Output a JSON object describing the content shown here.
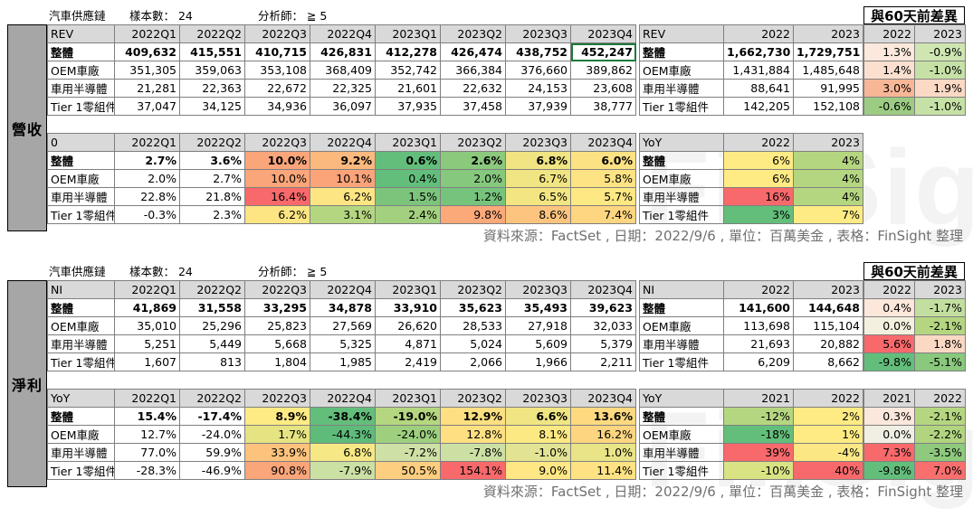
{
  "colors": {
    "red": "#f8696b",
    "orange": "#fba57a",
    "yellow": "#ffeb84",
    "lightgreen": "#b5d680",
    "green": "#63be7b",
    "header_gray": "#d9d9d9",
    "side_gray": "#a6a6a6"
  },
  "watermark": "FinSight",
  "source": "資料來源：FactSet , 日期：2022/9/6 , 單位：百萬美金 , 表格：FinSight 整理",
  "sections": [
    {
      "side_label": "營收",
      "meta": {
        "industry": "汽車供應鏈",
        "sample": "樣本數： 24",
        "analyst": "分析師： ≧ 5"
      },
      "diff_header": "與60天前差異",
      "top_left": {
        "header": [
          "REV",
          "2022Q1",
          "2022Q2",
          "2022Q3",
          "2022Q4",
          "2023Q1",
          "2023Q2",
          "2023Q3",
          "2023Q4"
        ],
        "rows": [
          {
            "label": "整體",
            "values": [
              "409,632",
              "415,551",
              "410,715",
              "426,831",
              "412,278",
              "426,474",
              "438,752",
              "452,247"
            ]
          },
          {
            "label": "OEM車廠",
            "values": [
              "351,305",
              "359,063",
              "353,108",
              "368,409",
              "352,742",
              "366,384",
              "376,660",
              "389,862"
            ]
          },
          {
            "label": "車用半導體",
            "values": [
              "21,281",
              "22,363",
              "22,672",
              "22,325",
              "21,601",
              "22,632",
              "24,153",
              "23,608"
            ]
          },
          {
            "label": "Tier 1零組件",
            "values": [
              "37,047",
              "34,125",
              "34,936",
              "36,097",
              "37,935",
              "37,458",
              "37,939",
              "38,777"
            ]
          }
        ]
      },
      "top_mid": {
        "header": [
          "REV",
          "2022",
          "2023"
        ],
        "rows": [
          {
            "label": "整體",
            "values": [
              "1,662,730",
              "1,729,751"
            ]
          },
          {
            "label": "OEM車廠",
            "values": [
              "1,431,884",
              "1,485,648"
            ]
          },
          {
            "label": "車用半導體",
            "values": [
              "88,641",
              "91,995"
            ]
          },
          {
            "label": "Tier 1零組件",
            "values": [
              "142,205",
              "152,108"
            ]
          }
        ]
      },
      "top_right": {
        "header": [
          "2022",
          "2023"
        ],
        "rows": [
          {
            "values": [
              "1.3%",
              "-0.9%"
            ],
            "colors": [
              "#fce8dc",
              "#cfe6b2"
            ]
          },
          {
            "values": [
              "1.4%",
              "-1.0%"
            ],
            "colors": [
              "#fbe0cf",
              "#c6e1a6"
            ]
          },
          {
            "values": [
              "3.0%",
              "1.9%"
            ],
            "colors": [
              "#f7b696",
              "#fbd9c5"
            ]
          },
          {
            "values": [
              "-0.6%",
              "-1.0%"
            ],
            "colors": [
              "#9ccc83",
              "#c6e1a6"
            ]
          }
        ]
      },
      "bot_left": {
        "header": [
          "0",
          "2022Q1",
          "2022Q2",
          "2022Q3",
          "2022Q4",
          "2023Q1",
          "2023Q2",
          "2023Q3",
          "2023Q4"
        ],
        "rows": [
          {
            "label": "整體",
            "values": [
              "2.7%",
              "3.6%",
              "10.0%",
              "9.2%",
              "0.6%",
              "2.6%",
              "6.8%",
              "6.0%"
            ],
            "colors": [
              "#fff",
              "#fff",
              "#fba57a",
              "#fcb97e",
              "#63be7b",
              "#8bc97d",
              "#f1e482",
              "#fde283"
            ]
          },
          {
            "label": "OEM車廠",
            "values": [
              "2.0%",
              "2.7%",
              "10.0%",
              "10.1%",
              "0.4%",
              "2.0%",
              "6.7%",
              "5.8%"
            ],
            "colors": [
              "#fff",
              "#fff",
              "#fba57a",
              "#fba379",
              "#63be7b",
              "#86c87d",
              "#f1e482",
              "#fde383"
            ]
          },
          {
            "label": "車用半導體",
            "values": [
              "22.8%",
              "21.8%",
              "16.4%",
              "6.2%",
              "1.5%",
              "1.2%",
              "6.5%",
              "5.7%"
            ],
            "colors": [
              "#fff",
              "#fff",
              "#f8696b",
              "#fee583",
              "#7cc47c",
              "#76c37c",
              "#f4e583",
              "#fde883"
            ]
          },
          {
            "label": "Tier 1零組件",
            "values": [
              "-0.3%",
              "2.3%",
              "6.2%",
              "3.1%",
              "2.4%",
              "9.8%",
              "8.6%",
              "7.4%"
            ],
            "colors": [
              "#fff",
              "#fff",
              "#fee583",
              "#b5d680",
              "#a2d07f",
              "#fba979",
              "#fdc47f",
              "#fed580"
            ]
          }
        ]
      },
      "bot_mid": {
        "header": [
          "YoY",
          "2022",
          "2023"
        ],
        "rows": [
          {
            "label": "整體",
            "values": [
              "6%",
              "4%"
            ],
            "colors": [
              "#ffeb84",
              "#b5d680"
            ]
          },
          {
            "label": "OEM車廠",
            "values": [
              "6%",
              "4%"
            ],
            "colors": [
              "#ffeb84",
              "#b5d680"
            ]
          },
          {
            "label": "車用半導體",
            "values": [
              "16%",
              "4%"
            ],
            "colors": [
              "#f8696b",
              "#b5d680"
            ]
          },
          {
            "label": "Tier 1零組件",
            "values": [
              "3%",
              "7%"
            ],
            "colors": [
              "#63be7b",
              "#ffeb84"
            ]
          }
        ]
      }
    },
    {
      "side_label": "淨利",
      "meta": {
        "industry": "汽車供應鏈",
        "sample": "樣本數： 24",
        "analyst": "分析師： ≧ 5"
      },
      "diff_header": "與60天前差異",
      "top_left": {
        "header": [
          "NI",
          "2022Q1",
          "2022Q2",
          "2022Q3",
          "2022Q4",
          "2023Q1",
          "2023Q2",
          "2023Q3",
          "2023Q4"
        ],
        "rows": [
          {
            "label": "整體",
            "values": [
              "41,869",
              "31,558",
              "33,295",
              "34,878",
              "33,910",
              "35,623",
              "35,493",
              "39,623"
            ]
          },
          {
            "label": "OEM車廠",
            "values": [
              "35,010",
              "25,296",
              "25,823",
              "27,569",
              "26,620",
              "28,533",
              "27,918",
              "32,033"
            ]
          },
          {
            "label": "車用半導體",
            "values": [
              "5,251",
              "5,449",
              "5,668",
              "5,325",
              "4,871",
              "5,024",
              "5,609",
              "5,379"
            ]
          },
          {
            "label": "Tier 1零組件",
            "values": [
              "1,607",
              "813",
              "1,804",
              "1,985",
              "2,419",
              "2,066",
              "1,966",
              "2,211"
            ]
          }
        ]
      },
      "top_mid": {
        "header": [
          "NI",
          "2022",
          "2023"
        ],
        "rows": [
          {
            "label": "整體",
            "values": [
              "141,600",
              "144,648"
            ]
          },
          {
            "label": "OEM車廠",
            "values": [
              "113,698",
              "115,104"
            ]
          },
          {
            "label": "車用半導體",
            "values": [
              "21,693",
              "20,882"
            ]
          },
          {
            "label": "Tier 1零組件",
            "values": [
              "6,209",
              "8,662"
            ]
          }
        ]
      },
      "top_right": {
        "header": [
          "2022",
          "2023"
        ],
        "rows": [
          {
            "values": [
              "0.4%",
              "-1.7%"
            ],
            "colors": [
              "#fde7da",
              "#c3df9f"
            ]
          },
          {
            "values": [
              "0.0%",
              "-2.1%"
            ],
            "colors": [
              "#f4f0df",
              "#b5d680"
            ]
          },
          {
            "values": [
              "5.6%",
              "1.8%"
            ],
            "colors": [
              "#f8696b",
              "#fbd8c3"
            ]
          },
          {
            "values": [
              "-9.8%",
              "-5.1%"
            ],
            "colors": [
              "#63be7b",
              "#89c87d"
            ]
          }
        ]
      },
      "bot_left": {
        "header": [
          "YoY",
          "2022Q1",
          "2022Q2",
          "2022Q3",
          "2022Q4",
          "2023Q1",
          "2023Q2",
          "2023Q3",
          "2023Q4"
        ],
        "rows": [
          {
            "label": "整體",
            "values": [
              "15.4%",
              "-17.4%",
              "8.9%",
              "-38.4%",
              "-19.0%",
              "12.9%",
              "6.6%",
              "13.6%"
            ],
            "colors": [
              "#fff",
              "#fff",
              "#ffeb84",
              "#63be7b",
              "#b5d680",
              "#fedf81",
              "#f0e583",
              "#fed980"
            ]
          },
          {
            "label": "OEM車廠",
            "values": [
              "12.7%",
              "-24.0%",
              "1.7%",
              "-44.3%",
              "-24.0%",
              "12.8%",
              "8.1%",
              "16.2%"
            ],
            "colors": [
              "#fff",
              "#fff",
              "#e6e383",
              "#5ebb7a",
              "#9ecf7f",
              "#fee082",
              "#fce983",
              "#fdd580"
            ]
          },
          {
            "label": "車用半導體",
            "values": [
              "77.0%",
              "59.9%",
              "33.9%",
              "6.8%",
              "-7.2%",
              "-7.8%",
              "-1.0%",
              "1.0%"
            ],
            "colors": [
              "#fff",
              "#fff",
              "#fdc37d",
              "#f6e884",
              "#cfe0a6",
              "#cde0a4",
              "#e2e493",
              "#e8e487"
            ]
          },
          {
            "label": "Tier 1零組件",
            "values": [
              "-28.3%",
              "-46.9%",
              "90.8%",
              "-7.9%",
              "50.5%",
              "154.1%",
              "9.0%",
              "11.4%"
            ],
            "colors": [
              "#fff",
              "#fff",
              "#fba57a",
              "#cbe0a3",
              "#fdce80",
              "#f8696b",
              "#fee784",
              "#fee283"
            ]
          }
        ]
      },
      "bot_mid": {
        "header": [
          "YoY",
          "2021",
          "2022"
        ],
        "rows": [
          {
            "label": "整體",
            "values": [
              "-12%",
              "2%"
            ],
            "colors": [
              "#b5d680",
              "#ffeb84"
            ]
          },
          {
            "label": "OEM車廠",
            "values": [
              "-18%",
              "1%"
            ],
            "colors": [
              "#63be7b",
              "#ffeb84"
            ]
          },
          {
            "label": "車用半導體",
            "values": [
              "39%",
              "-4%"
            ],
            "colors": [
              "#f8696b",
              "#fbe884"
            ]
          },
          {
            "label": "Tier 1零組件",
            "values": [
              "-10%",
              "40%"
            ],
            "colors": [
              "#d9e384",
              "#f8696b"
            ]
          }
        ]
      },
      "bot_right": {
        "header": [
          "2021",
          "2022"
        ],
        "rows": [
          {
            "values": [
              "0.3%",
              "-2.1%"
            ],
            "colors": [
              "#fbe7dc",
              "#b5d680"
            ]
          },
          {
            "values": [
              "0.0%",
              "-2.2%"
            ],
            "colors": [
              "#f1efe4",
              "#b1d47f"
            ]
          },
          {
            "values": [
              "7.3%",
              "-3.5%"
            ],
            "colors": [
              "#f8696b",
              "#8ec97d"
            ]
          },
          {
            "values": [
              "-9.8%",
              "7.0%"
            ],
            "colors": [
              "#63be7b",
              "#f96f6e"
            ]
          }
        ]
      }
    }
  ]
}
